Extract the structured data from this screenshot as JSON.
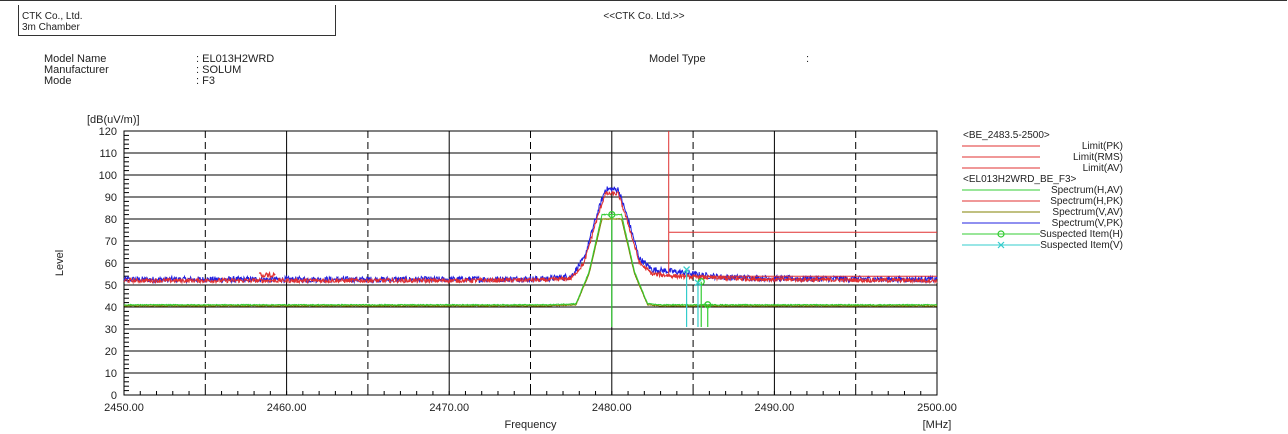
{
  "header": {
    "company": "CTK Co., Ltd.",
    "chamber": "3m Chamber",
    "title": "<<CTK Co. Ltd.>>"
  },
  "info": {
    "model_name_label": "Model Name",
    "model_name_value": ": EL013H2WRD",
    "manufacturer_label": "Manufacturer",
    "manufacturer_value": ": SOLUM",
    "mode_label": "Mode",
    "mode_value": ": F3",
    "model_type_label": "Model Type",
    "model_type_value": ":"
  },
  "chart_data": {
    "type": "line",
    "ylabel": "Level",
    "yunit": "[dB(uV/m)]",
    "xlabel": "Frequency",
    "xunit": "[MHz]",
    "xlim": [
      2450,
      2500
    ],
    "ylim": [
      0,
      120
    ],
    "x_ticks": [
      "2450.00",
      "2460.00",
      "2470.00",
      "2480.00",
      "2490.00",
      "2500.00"
    ],
    "y_ticks": [
      "0",
      "10",
      "20",
      "30",
      "40",
      "50",
      "60",
      "70",
      "80",
      "90",
      "100",
      "110",
      "120"
    ],
    "grid": true,
    "legend_position": "right",
    "legend_groups": [
      {
        "title": "<BE_2483.5-2500>",
        "entries": [
          {
            "name": "Limit(PK)",
            "color": "#e03030",
            "marker": "none"
          },
          {
            "name": "Limit(RMS)",
            "color": "#e03030",
            "marker": "none"
          },
          {
            "name": "Limit(AV)",
            "color": "#e03030",
            "marker": "none"
          }
        ]
      },
      {
        "title": "<EL013H2WRD_BE_F3>",
        "entries": [
          {
            "name": "Spectrum(H,AV)",
            "color": "#33cc33",
            "marker": "none"
          },
          {
            "name": "Spectrum(H,PK)",
            "color": "#e03030",
            "marker": "none"
          },
          {
            "name": "Spectrum(V,AV)",
            "color": "#808000",
            "marker": "none"
          },
          {
            "name": "Spectrum(V,PK)",
            "color": "#2020e0",
            "marker": "none"
          },
          {
            "name": "Suspected Item(H)",
            "color": "#33cc33",
            "marker": "circle"
          },
          {
            "name": "Suspected Item(V)",
            "color": "#33cccc",
            "marker": "x"
          }
        ]
      }
    ],
    "limits": {
      "color": "#e03030",
      "start_x": 2483.5,
      "pk": 74,
      "av": 54
    },
    "series": [
      {
        "name": "Spectrum(V,PK)",
        "color": "#2020e0",
        "noise": 1.4,
        "x": [
          2450,
          2458,
          2470,
          2476,
          2477.5,
          2478.3,
          2479,
          2479.6,
          2480.4,
          2481,
          2481.7,
          2482.5,
          2484,
          2485.5,
          2487,
          2490,
          2500
        ],
        "y": [
          52.5,
          52.5,
          52.5,
          52.8,
          54,
          62,
          80,
          93.5,
          93.5,
          80,
          62,
          57,
          56,
          54.5,
          53.5,
          53,
          52.5
        ]
      },
      {
        "name": "Spectrum(H,PK)",
        "color": "#e03030",
        "noise": 1.0,
        "x": [
          2450,
          2458,
          2470,
          2476,
          2477.5,
          2478.3,
          2479,
          2479.6,
          2480.4,
          2481,
          2481.7,
          2482.5,
          2484,
          2485.5,
          2487,
          2490,
          2500
        ],
        "y": [
          52,
          52,
          52,
          52.3,
          53,
          60,
          78,
          91.5,
          91.5,
          78,
          60,
          55,
          54,
          53.5,
          53,
          52.5,
          52
        ]
      },
      {
        "name": "Spectrum(V,AV)",
        "color": "#808000",
        "noise": 0.2,
        "x": [
          2450,
          2476,
          2477.8,
          2478.6,
          2479.4,
          2480.6,
          2481.4,
          2482.2,
          2483,
          2500
        ],
        "y": [
          40.5,
          40.5,
          41,
          55,
          80,
          80,
          55,
          41,
          40.5,
          40.5
        ]
      },
      {
        "name": "Spectrum(H,AV)",
        "color": "#33cc33",
        "noise": 0.2,
        "x": [
          2450,
          2476,
          2477.8,
          2478.6,
          2479.4,
          2480.6,
          2481.4,
          2482.2,
          2483,
          2500
        ],
        "y": [
          41,
          41,
          41.5,
          56,
          82,
          82,
          56,
          41.5,
          41,
          41
        ]
      }
    ],
    "suspected_items": [
      {
        "name": "Suspected Item(H)",
        "color": "#33cc33",
        "marker": "circle",
        "points": [
          [
            2480,
            82
          ],
          [
            2485.5,
            51.5
          ],
          [
            2485.9,
            41
          ]
        ]
      },
      {
        "name": "Suspected Item(V)",
        "color": "#33cccc",
        "marker": "x",
        "points": [
          [
            2484.6,
            57
          ],
          [
            2485.3,
            51
          ]
        ]
      }
    ]
  }
}
